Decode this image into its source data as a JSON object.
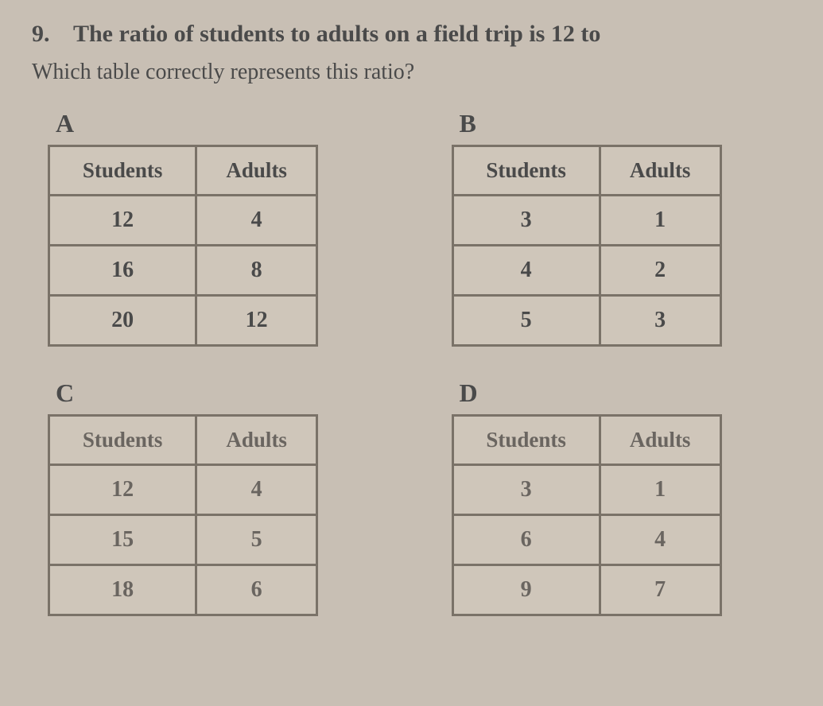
{
  "question": {
    "number": "9.",
    "text_line1": "The ratio of students to adults on a field trip is 12 to",
    "text_line2": "Which table correctly represents this ratio?"
  },
  "colors": {
    "background": "#c8bfb4",
    "text": "#4a4a4a",
    "border": "#7a7268",
    "table_bg": "#cfc6ba"
  },
  "typography": {
    "question_fontsize": 30,
    "label_fontsize": 32,
    "header_fontsize": 27,
    "cell_fontsize": 28,
    "font_family": "Georgia, Times New Roman, serif"
  },
  "tables": {
    "A": {
      "label": "A",
      "columns": [
        "Students",
        "Adults"
      ],
      "rows": [
        [
          "12",
          "4"
        ],
        [
          "16",
          "8"
        ],
        [
          "20",
          "12"
        ]
      ]
    },
    "B": {
      "label": "B",
      "columns": [
        "Students",
        "Adults"
      ],
      "rows": [
        [
          "3",
          "1"
        ],
        [
          "4",
          "2"
        ],
        [
          "5",
          "3"
        ]
      ]
    },
    "C": {
      "label": "C",
      "columns": [
        "Students",
        "Adults"
      ],
      "rows": [
        [
          "12",
          "4"
        ],
        [
          "15",
          "5"
        ],
        [
          "18",
          "6"
        ]
      ]
    },
    "D": {
      "label": "D",
      "columns": [
        "Students",
        "Adults"
      ],
      "rows": [
        [
          "3",
          "1"
        ],
        [
          "6",
          "4"
        ],
        [
          "9",
          "7"
        ]
      ]
    }
  }
}
